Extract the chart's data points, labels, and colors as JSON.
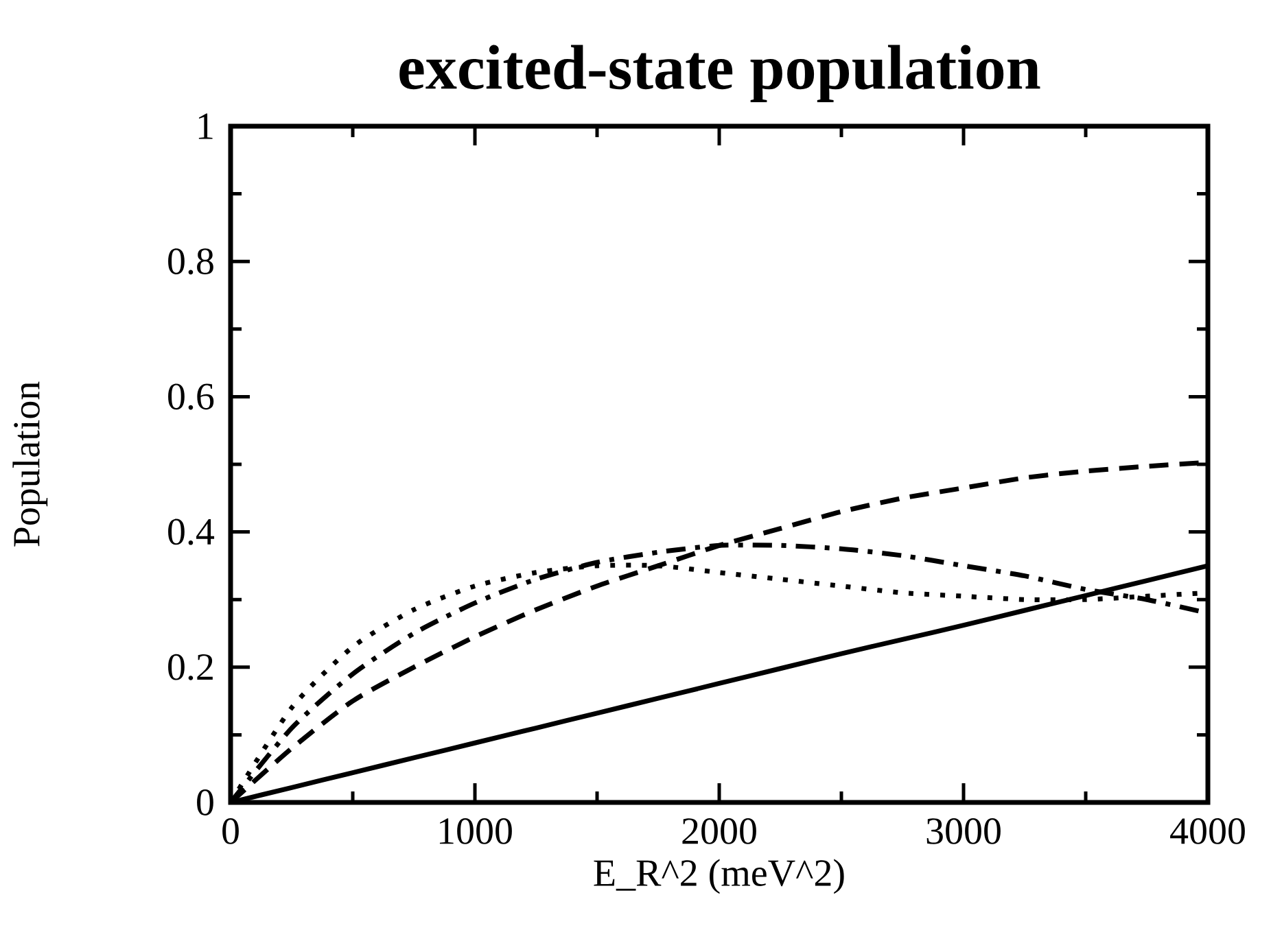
{
  "chart_data": {
    "type": "line",
    "title": "excited-state population",
    "xlabel": "E_R^2 (meV^2)",
    "ylabel": "Population",
    "x": [
      0,
      250,
      500,
      750,
      1000,
      1250,
      1500,
      1750,
      2000,
      2250,
      2500,
      2750,
      3000,
      3250,
      3500,
      3750,
      4000
    ],
    "series": [
      {
        "color": "#000000",
        "line_style": "solid",
        "values": [
          0,
          0.022,
          0.044,
          0.066,
          0.088,
          0.11,
          0.132,
          0.154,
          0.176,
          0.198,
          0.22,
          0.241,
          0.262,
          0.284,
          0.306,
          0.328,
          0.35
        ]
      },
      {
        "color": "#000000",
        "line_style": "dashed",
        "values": [
          0,
          0.08,
          0.15,
          0.2,
          0.245,
          0.285,
          0.32,
          0.35,
          0.38,
          0.405,
          0.43,
          0.45,
          0.465,
          0.48,
          0.49,
          0.497,
          0.503
        ]
      },
      {
        "color": "#000000",
        "line_style": "dashdot",
        "values": [
          0,
          0.11,
          0.19,
          0.25,
          0.295,
          0.33,
          0.355,
          0.37,
          0.38,
          0.38,
          0.375,
          0.365,
          0.35,
          0.335,
          0.315,
          0.3,
          0.28
        ]
      },
      {
        "color": "#000000",
        "line_style": "dotted",
        "values": [
          0,
          0.14,
          0.23,
          0.285,
          0.32,
          0.34,
          0.35,
          0.35,
          0.34,
          0.33,
          0.32,
          0.31,
          0.305,
          0.3,
          0.3,
          0.305,
          0.31
        ]
      }
    ],
    "xlim": [
      0,
      4000
    ],
    "ylim": [
      0,
      1
    ],
    "xticks": [
      0,
      1000,
      2000,
      3000,
      4000
    ],
    "yticks": [
      0,
      0.2,
      0.4,
      0.6,
      0.8,
      1
    ],
    "grid": false
  }
}
